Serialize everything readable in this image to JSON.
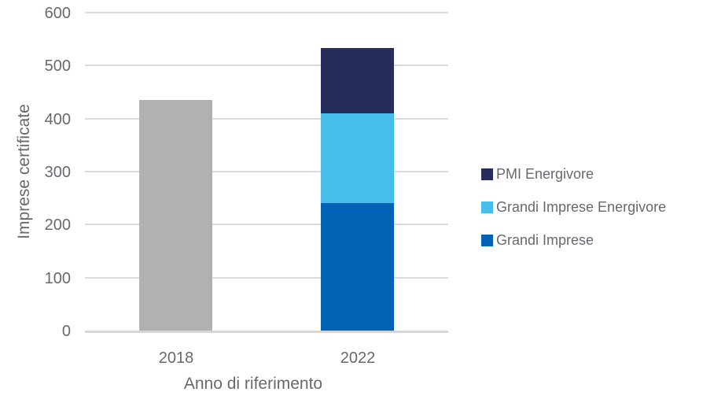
{
  "chart_data": {
    "type": "bar",
    "stacked": true,
    "title": "",
    "xlabel": "Anno di riferimento",
    "ylabel": "Imprese certificate",
    "categories": [
      "2018",
      "2022"
    ],
    "ylim": [
      0,
      600
    ],
    "yticks": [
      0,
      100,
      200,
      300,
      400,
      500,
      600
    ],
    "grid": "horizontal",
    "legend_position": "right",
    "bars": [
      {
        "category": "2018",
        "segments": [
          {
            "value": 435,
            "color": "#B1B1B1"
          }
        ]
      },
      {
        "category": "2022",
        "segments": [
          {
            "label": "Grandi Imprese",
            "value": 240,
            "color": "#0061B5"
          },
          {
            "label": "Grandi Imprese Energivore",
            "value": 170,
            "color": "#47BDEA"
          },
          {
            "label": "PMI Energivore",
            "value": 123,
            "color": "#272D5B"
          }
        ]
      }
    ],
    "legend": [
      {
        "label": "PMI Energivore",
        "color": "#272D5B"
      },
      {
        "label": "Grandi Imprese Energivore",
        "color": "#47BDEA"
      },
      {
        "label": "Grandi Imprese",
        "color": "#0061B5"
      }
    ]
  },
  "colors": {
    "grid": "#DCDCDC",
    "axis_line": "#D6D6D6",
    "text": "#66696F",
    "background": "#FFFFFF"
  }
}
